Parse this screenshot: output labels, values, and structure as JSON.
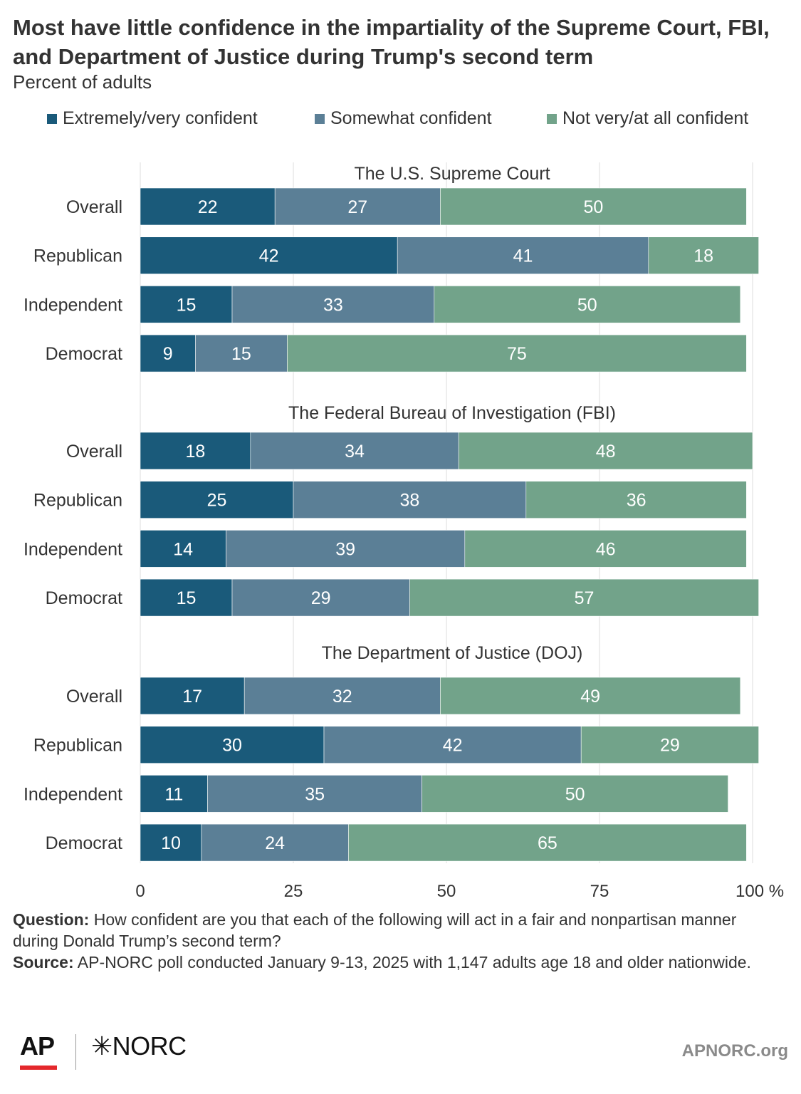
{
  "title": "Most have little confidence in the impartiality of the Supreme Court, FBI, and Department of Justice during Trump's second term",
  "subtitle": "Percent of adults",
  "legend": [
    {
      "label": "Extremely/very confident",
      "color": "#1a5a7a"
    },
    {
      "label": "Somewhat confident",
      "color": "#5b7f96"
    },
    {
      "label": "Not very/at all confident",
      "color": "#72a38a"
    }
  ],
  "chart_data": {
    "type": "bar",
    "orientation": "horizontal-stacked",
    "xlim": [
      0,
      100
    ],
    "x_ticks": [
      "0",
      "25",
      "50",
      "75",
      "100 %"
    ],
    "series_names": [
      "Extremely/very confident",
      "Somewhat confident",
      "Not very/at all confident"
    ],
    "groups": [
      {
        "title": "The U.S. Supreme Court",
        "rows": [
          {
            "label": "Overall",
            "values": [
              22,
              27,
              50
            ]
          },
          {
            "label": "Republican",
            "values": [
              42,
              41,
              18
            ]
          },
          {
            "label": "Independent",
            "values": [
              15,
              33,
              50
            ]
          },
          {
            "label": "Democrat",
            "values": [
              9,
              15,
              75
            ]
          }
        ]
      },
      {
        "title": "The Federal Bureau of Investigation (FBI)",
        "rows": [
          {
            "label": "Overall",
            "values": [
              18,
              34,
              48
            ]
          },
          {
            "label": "Republican",
            "values": [
              25,
              38,
              36
            ]
          },
          {
            "label": "Independent",
            "values": [
              14,
              39,
              46
            ]
          },
          {
            "label": "Democrat",
            "values": [
              15,
              29,
              57
            ]
          }
        ]
      },
      {
        "title": "The Department of Justice (DOJ)",
        "rows": [
          {
            "label": "Overall",
            "values": [
              17,
              32,
              49
            ]
          },
          {
            "label": "Republican",
            "values": [
              30,
              42,
              29
            ]
          },
          {
            "label": "Independent",
            "values": [
              11,
              35,
              50
            ]
          },
          {
            "label": "Democrat",
            "values": [
              10,
              24,
              65
            ]
          }
        ]
      }
    ],
    "grid": true
  },
  "notes": {
    "question_label": "Question:",
    "question_text": "How confident are you that each of the following will act in a fair and nonpartisan manner during Donald Trump’s second term?",
    "source_label": "Source:",
    "source_text": "AP-NORC poll conducted January 9-13, 2025 with 1,147 adults age 18 and older nationwide."
  },
  "footer": {
    "ap_logo": "AP",
    "norc_logo": "✳NORC",
    "site": "APNORC.org",
    "ap_red": "#e4282c"
  }
}
